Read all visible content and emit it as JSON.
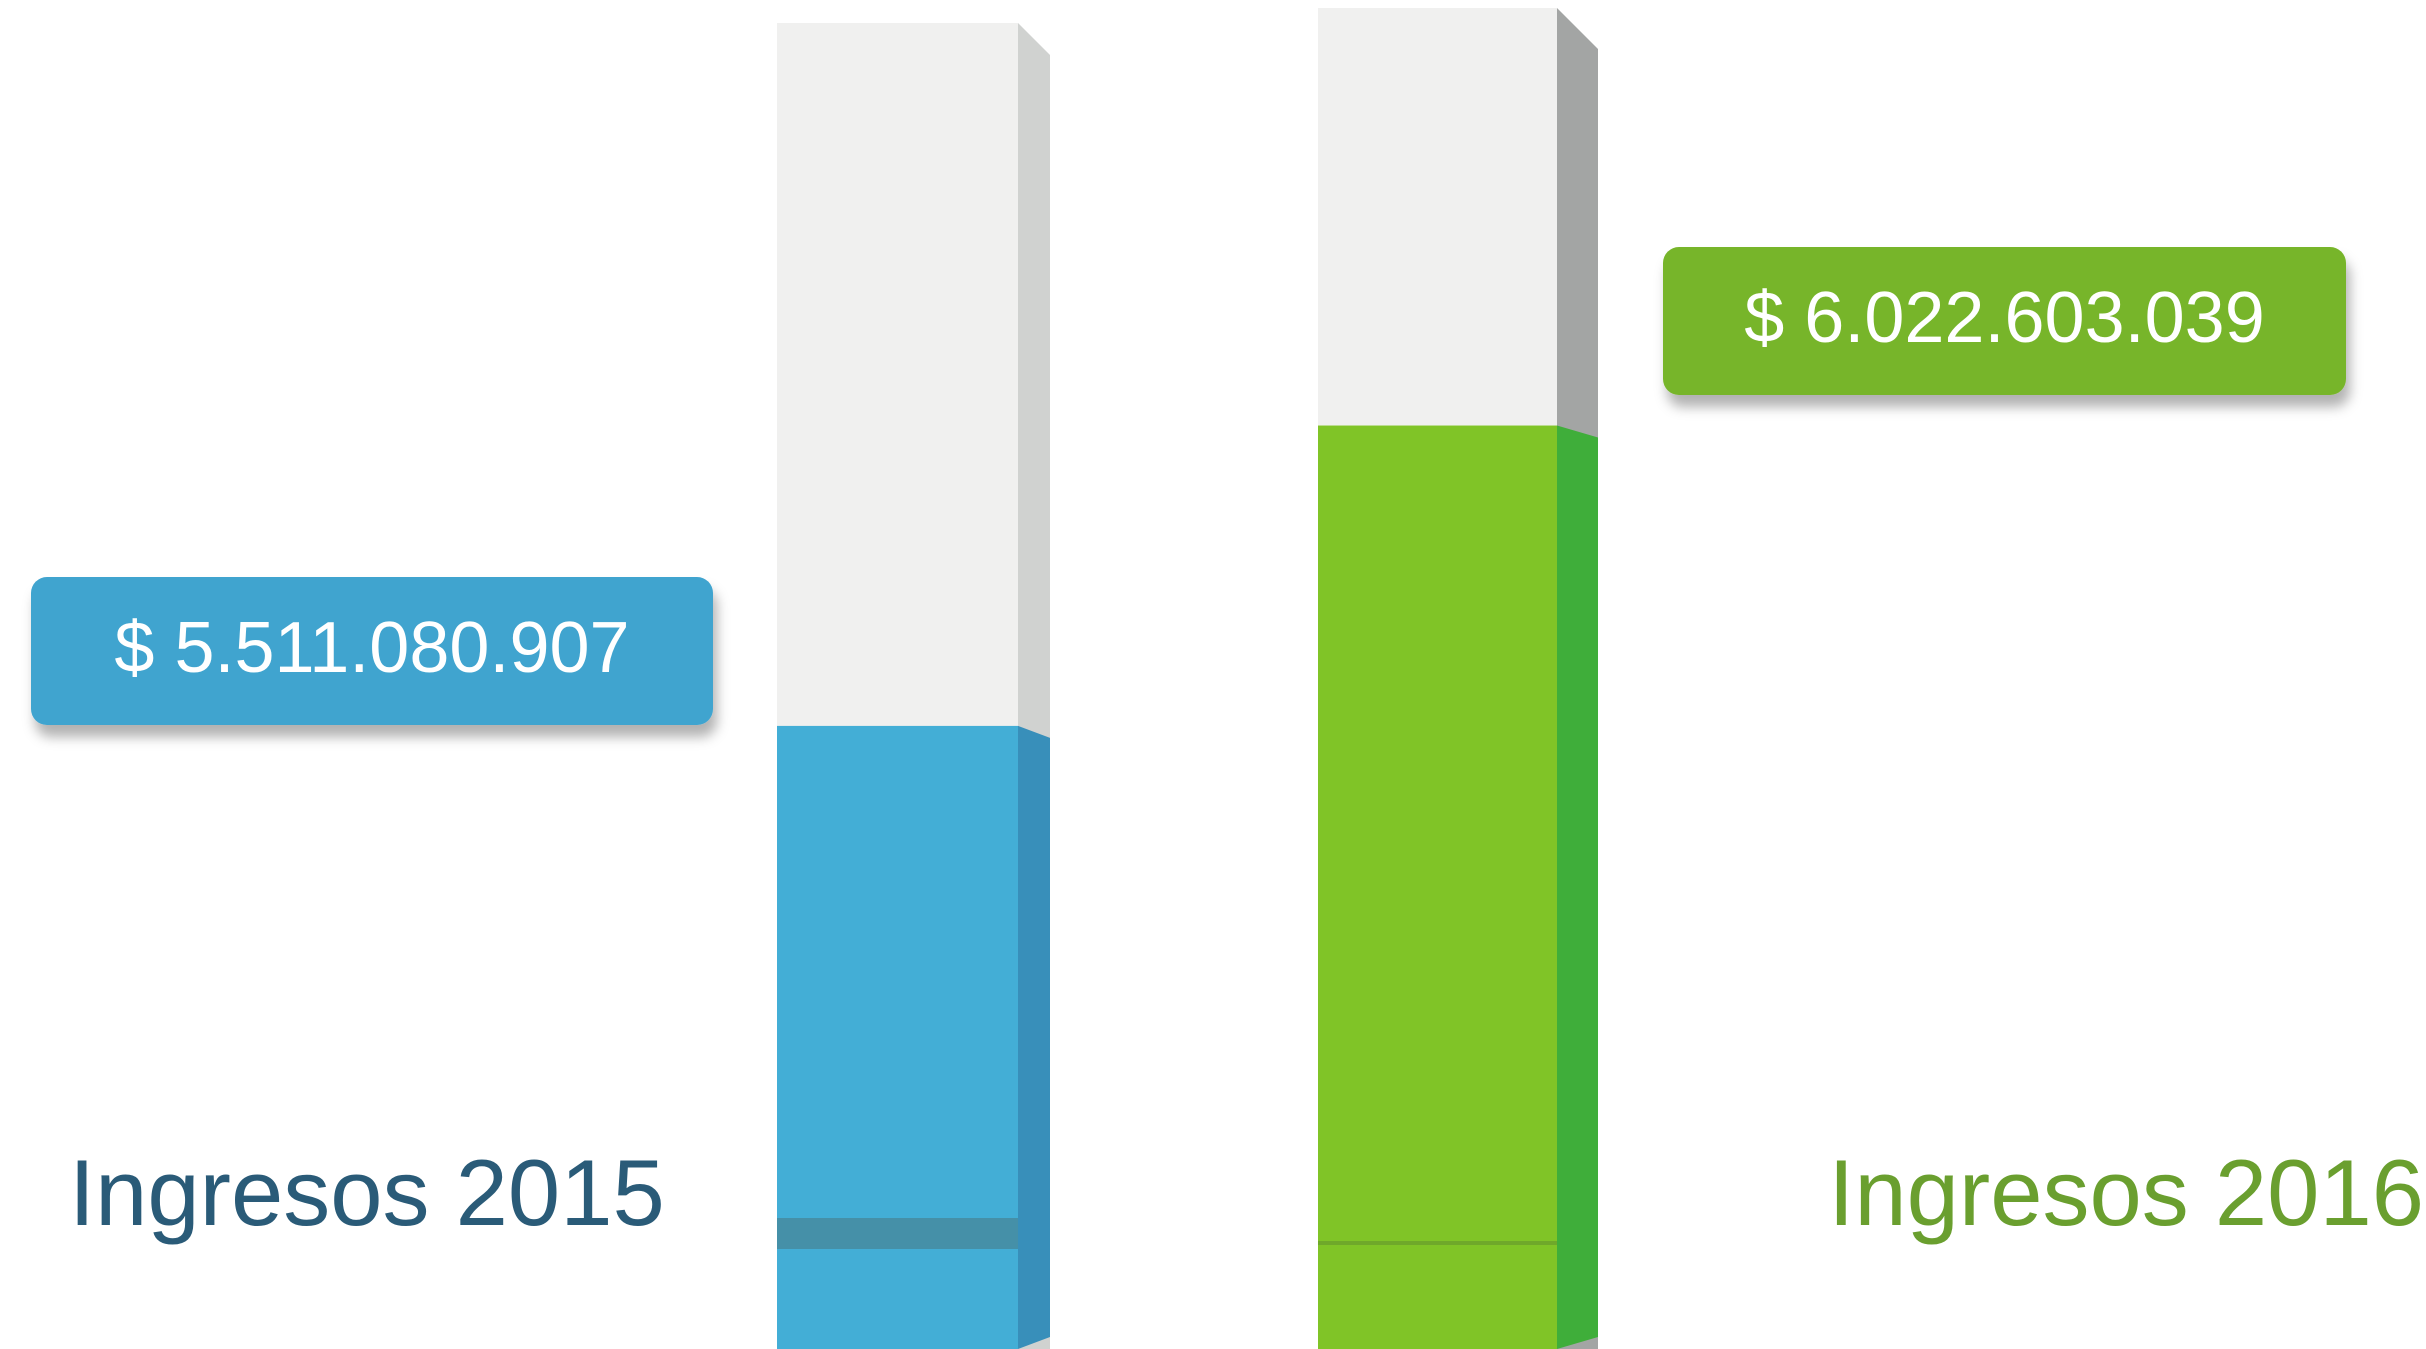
{
  "chart_data": {
    "type": "bar",
    "categories": [
      "Ingresos 2015",
      "Ingresos 2016"
    ],
    "values": [
      5511080907,
      6022603039
    ],
    "value_labels": [
      "$ 5.511.080.907",
      "$ 6.022.603.039"
    ],
    "colors": [
      "#43aed6",
      "#80c427"
    ],
    "ylim": [
      4450000000,
      6720000000
    ]
  }
}
